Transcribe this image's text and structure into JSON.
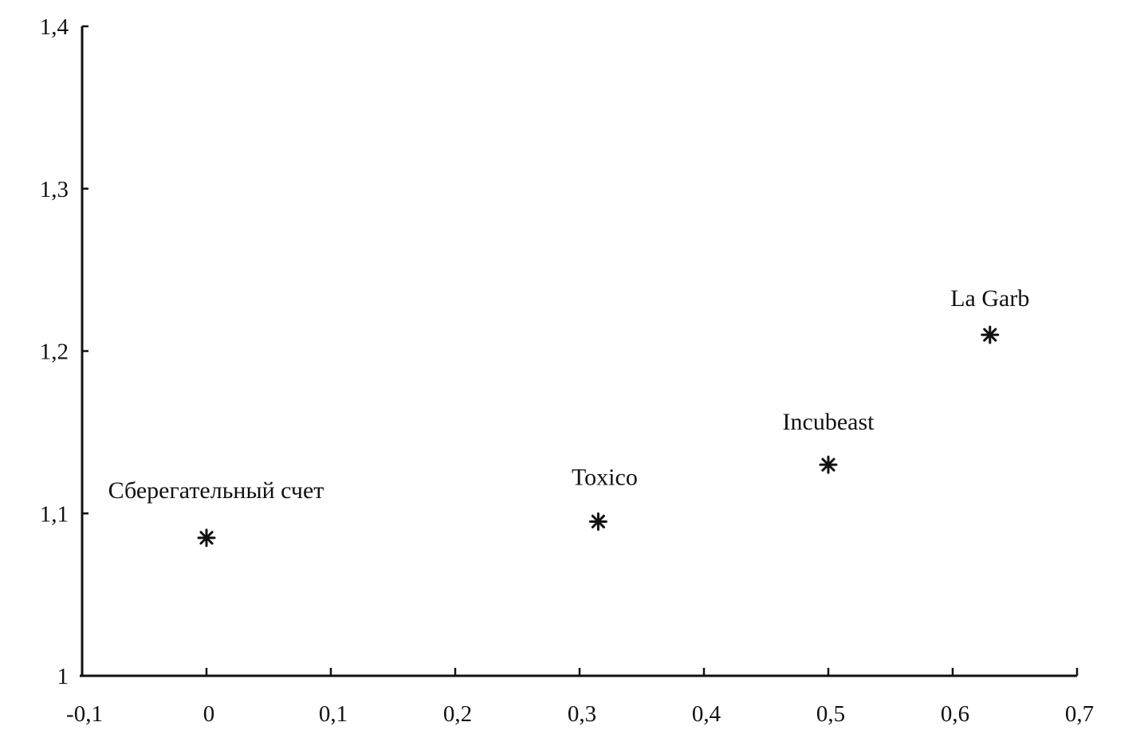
{
  "chart_data": {
    "type": "scatter",
    "title": "",
    "xlabel": "",
    "ylabel": "",
    "xlim": [
      -0.1,
      0.7
    ],
    "ylim": [
      1.0,
      1.4
    ],
    "grid": false,
    "x_ticks": [
      -0.1,
      0,
      0.1,
      0.2,
      0.3,
      0.4,
      0.5,
      0.6,
      0.7
    ],
    "x_tick_labels": [
      "-0,1",
      "0",
      "0,1",
      "0,2",
      "0,3",
      "0,4",
      "0,5",
      "0,6",
      "0,7"
    ],
    "y_ticks": [
      1.0,
      1.1,
      1.2,
      1.3,
      1.4
    ],
    "y_tick_labels": [
      "1",
      "1,1",
      "1,2",
      "1,3",
      "1,4"
    ],
    "marker": "asterisk",
    "marker_color": "#111111",
    "points": [
      {
        "label": "Сберегательный счет",
        "x": 0.0,
        "y": 1.085
      },
      {
        "label": "Toxico",
        "x": 0.315,
        "y": 1.095
      },
      {
        "label": "Incubeast",
        "x": 0.5,
        "y": 1.13
      },
      {
        "label": "La Garb",
        "x": 0.63,
        "y": 1.21
      }
    ]
  }
}
